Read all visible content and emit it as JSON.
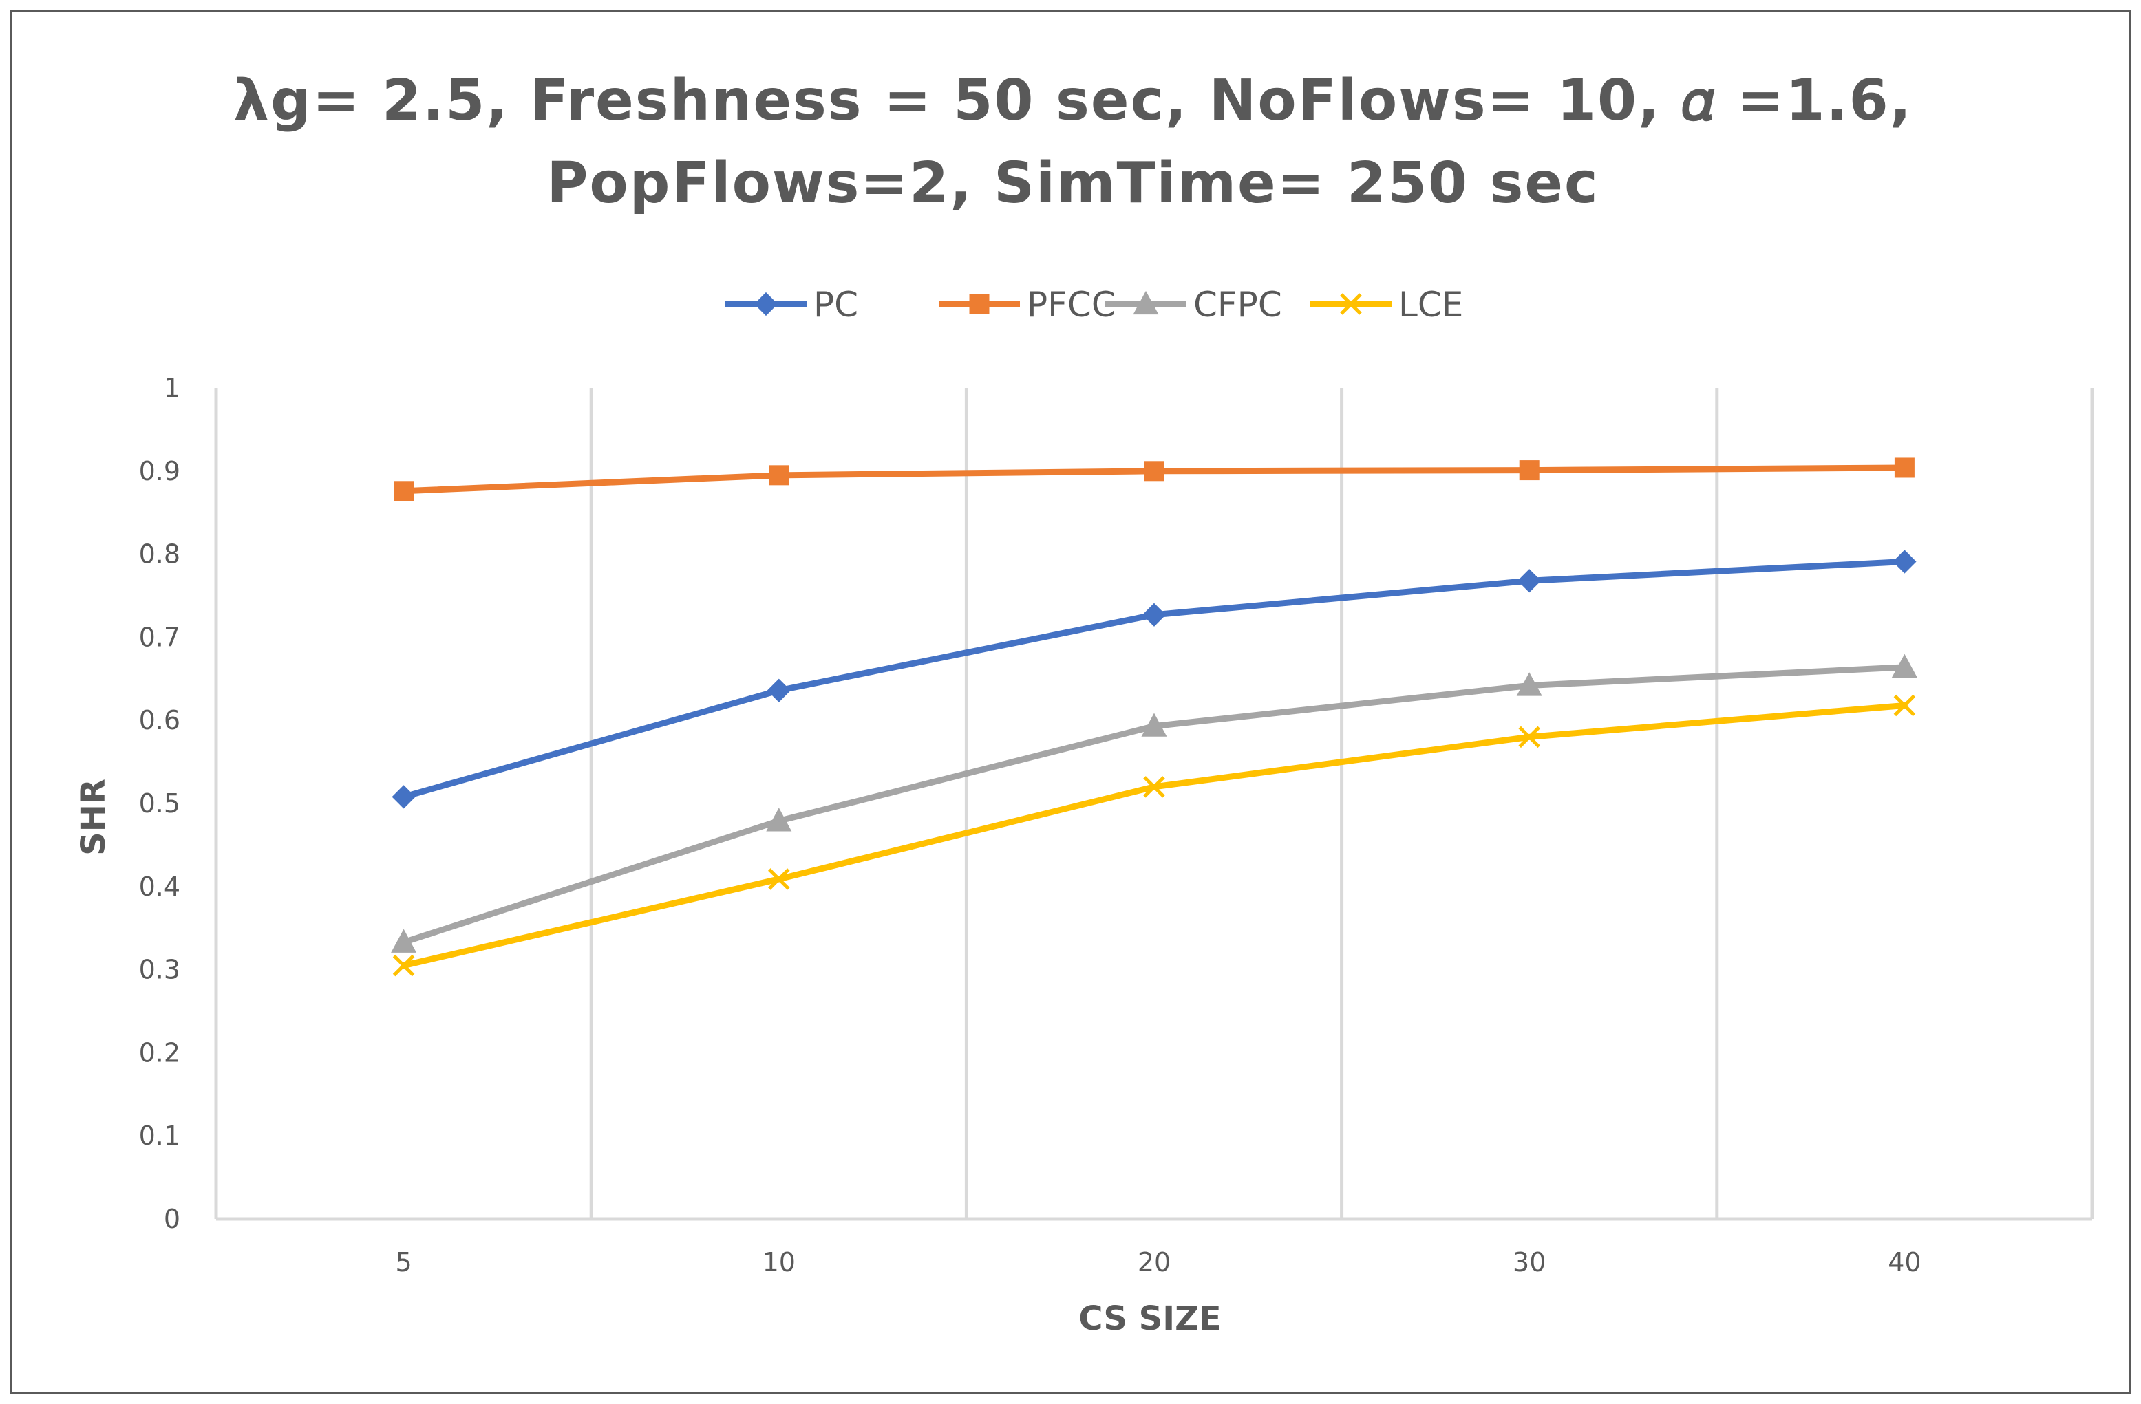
{
  "chart_data": {
    "type": "line",
    "title_lines": [
      "λg= 2.5, Freshness = 50 sec, NoFlows= 10, 𝛼 =1.6,",
      "PopFlows=2, SimTime= 250 sec"
    ],
    "xlabel": "CS SIZE",
    "ylabel": "SHR",
    "categories": [
      "5",
      "10",
      "20",
      "30",
      "40"
    ],
    "ylim": [
      0,
      1
    ],
    "yticks": [
      "0",
      "0.1",
      "0.2",
      "0.3",
      "0.4",
      "0.5",
      "0.6",
      "0.7",
      "0.8",
      "0.9",
      "1"
    ],
    "grid": "vertical",
    "legend_position": "top",
    "series": [
      {
        "name": "PC",
        "color": "#4472C4",
        "marker": "diamond",
        "values": [
          0.508,
          0.636,
          0.727,
          0.768,
          0.791
        ]
      },
      {
        "name": "PFCC",
        "color": "#ED7D31",
        "marker": "square",
        "values": [
          0.876,
          0.895,
          0.9,
          0.901,
          0.904
        ]
      },
      {
        "name": "CFPC",
        "color": "#A5A5A5",
        "marker": "triangle",
        "values": [
          0.333,
          0.479,
          0.593,
          0.642,
          0.664
        ]
      },
      {
        "name": "LCE",
        "color": "#FFC000",
        "marker": "x",
        "values": [
          0.305,
          0.409,
          0.52,
          0.58,
          0.618
        ]
      }
    ]
  }
}
